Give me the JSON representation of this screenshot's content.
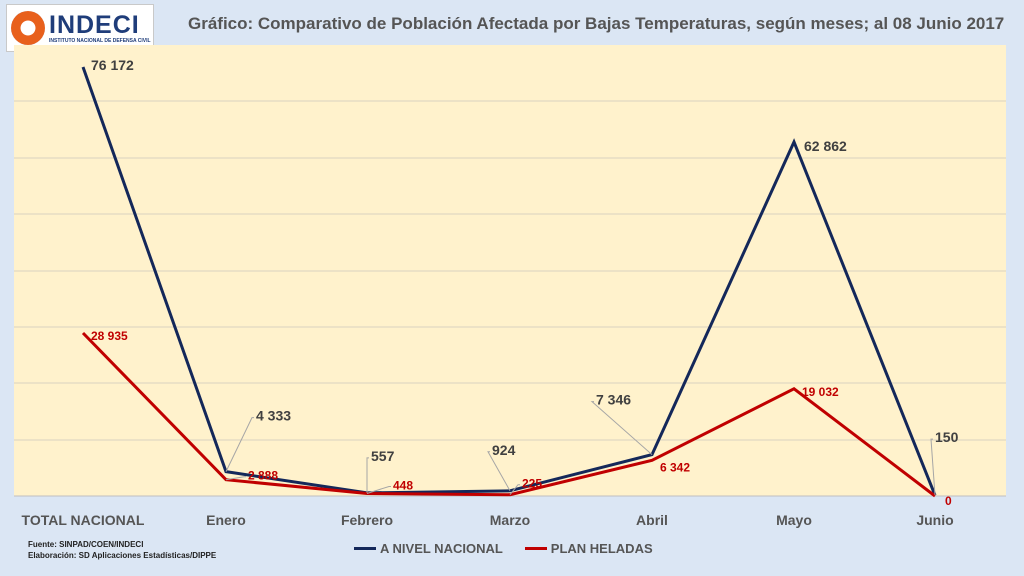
{
  "logo": {
    "name": "INDECI",
    "subtitle": "INSTITUTO NACIONAL DE DEFENSA CIVIL"
  },
  "chart_data": {
    "type": "line",
    "title": "Gráfico: Comparativo de Población Afectada por Bajas Temperaturas, según meses; al 08 Junio 2017",
    "categories": [
      "TOTAL NACIONAL",
      "Enero",
      "Febrero",
      "Marzo",
      "Abril",
      "Mayo",
      "Junio"
    ],
    "ylim": [
      0,
      76172
    ],
    "grid": true,
    "legend_position": "bottom",
    "series": [
      {
        "name": "A NIVEL NACIONAL",
        "color": "#14285a",
        "values": [
          76172,
          4333,
          557,
          924,
          7346,
          62862,
          150
        ],
        "labels": [
          "76 172",
          "4 333",
          "557",
          "924",
          "7 346",
          "62 862",
          "150"
        ]
      },
      {
        "name": "PLAN HELADAS",
        "color": "#c00000",
        "values": [
          28935,
          2888,
          448,
          225,
          6342,
          19032,
          0
        ],
        "labels": [
          "28 935",
          "2 888",
          "448",
          "225",
          "6 342",
          "19 032",
          "0"
        ]
      }
    ]
  },
  "footer": {
    "source": "Fuente: SINPAD/COEN/INDECI",
    "elaboration": "Elaboración: SD Aplicaciones Estadísticas/DIPPE"
  },
  "colors": {
    "plot_bg": "#fff2cc",
    "page_bg": "#dbe6f4",
    "national": "#14285a",
    "heladas": "#c00000"
  }
}
